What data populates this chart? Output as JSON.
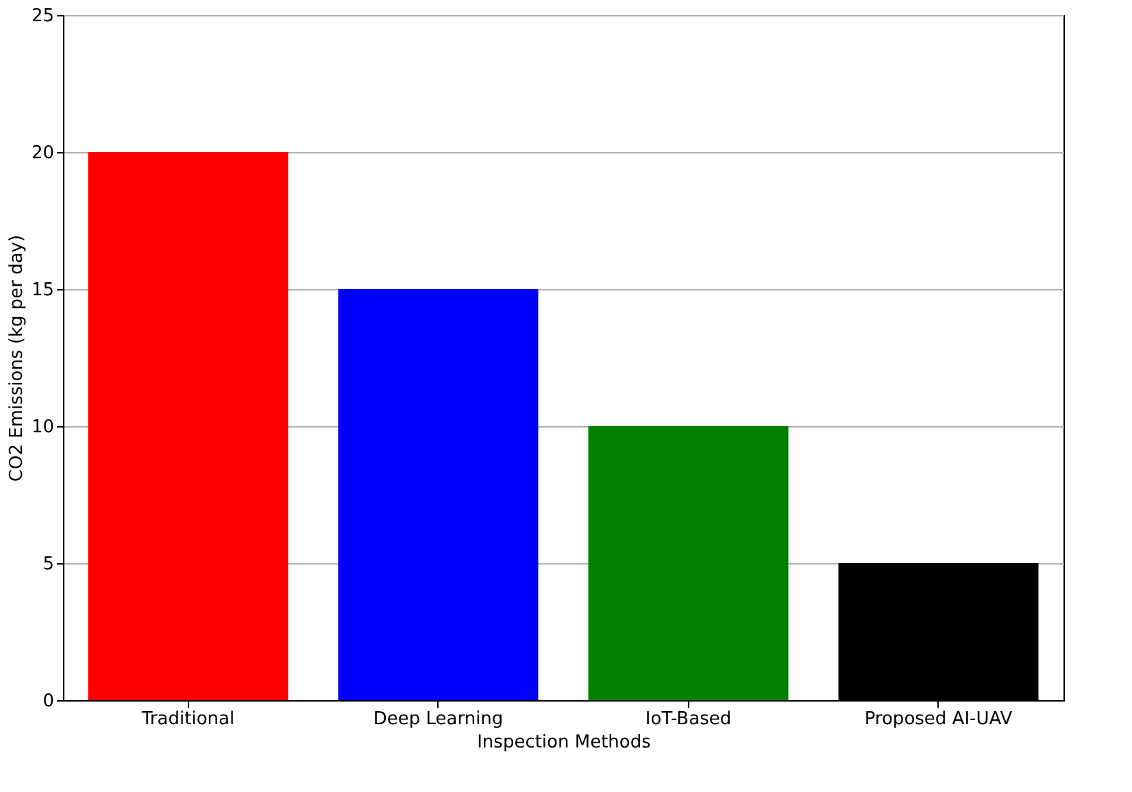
{
  "chart_data": {
    "type": "bar",
    "xlabel": "Inspection Methods",
    "ylabel": "CO2 Emissions (kg per day)",
    "categories": [
      "Traditional",
      "Deep Learning",
      "IoT-Based",
      "Proposed AI-UAV"
    ],
    "values": [
      20,
      15,
      10,
      5
    ],
    "colors": [
      "#ff0000",
      "#0000ff",
      "#008000",
      "#000000"
    ],
    "ylim": [
      0,
      25
    ],
    "yticks": [
      0,
      5,
      10,
      15,
      20,
      25
    ],
    "grid": "y"
  }
}
